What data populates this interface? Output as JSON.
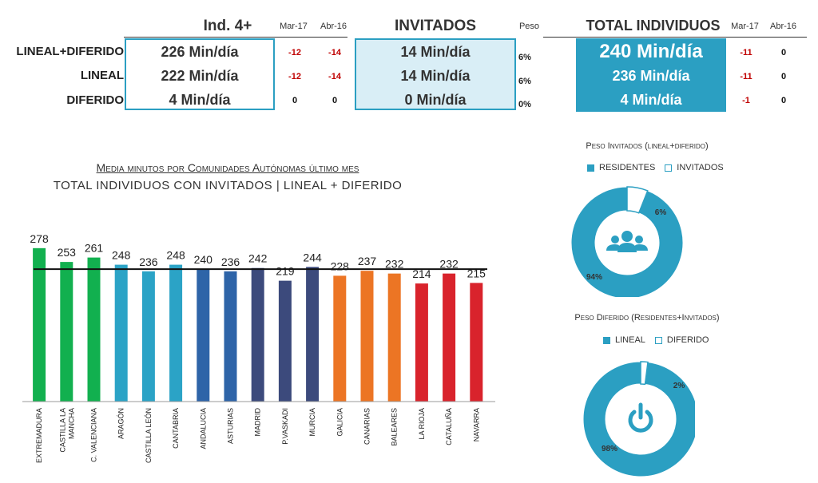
{
  "header": {
    "ind_title": "Ind. 4+",
    "invitados_title": "INVITADOS",
    "total_title": "TOTAL INDIVIDUOS",
    "mar17": "Mar-17",
    "abr16": "Abr-16",
    "peso": "Peso"
  },
  "rows": [
    {
      "label": "LINEAL+DIFERIDO",
      "ind": "226 Min/día",
      "ind_mar": "-12",
      "ind_abr": "-14",
      "inv": "14 Min/día",
      "peso": "6%",
      "tot": "240 Min/día",
      "tot_mar": "-11",
      "tot_abr": "0"
    },
    {
      "label": "LINEAL",
      "ind": "222 Min/día",
      "ind_mar": "-12",
      "ind_abr": "-14",
      "inv": "14 Min/día",
      "peso": "6%",
      "tot": "236 Min/día",
      "tot_mar": "-11",
      "tot_abr": "0"
    },
    {
      "label": "DIFERIDO",
      "ind": "4 Min/día",
      "ind_mar": "0",
      "ind_abr": "0",
      "inv": "0 Min/día",
      "peso": "0%",
      "tot": "4 Min/día",
      "tot_mar": "-1",
      "tot_abr": "0"
    }
  ],
  "colors": {
    "invitados_bg": "#d9eef6",
    "total_bg": "#2b9fc2",
    "negative": "#c00000",
    "pie_main": "#2b9fc2"
  },
  "chart_data": [
    {
      "type": "bar",
      "title": "Media minutos por Comunidades Autónomas último mes",
      "subtitle": "TOTAL INDIVIDUOS CON INVITADOS | LINEAL + DIFERIDO",
      "categories": [
        "EXTREMADURA",
        "CASTILLA LA MANCHA",
        "C. VALENCIANA",
        "ARAGÓN",
        "CASTILLA LEÓN",
        "CANTABRIA",
        "ANDALUCIA",
        "ASTURIAS",
        "MADRID",
        "P.VASKADI",
        "MURCIA",
        "GALICIA",
        "CANARIAS",
        "BALEARES",
        "LA RIOJA",
        "CATALUÑA",
        "NAVARRA"
      ],
      "values": [
        278,
        253,
        261,
        248,
        236,
        248,
        240,
        236,
        242,
        219,
        244,
        228,
        237,
        232,
        214,
        232,
        215
      ],
      "colors": [
        "#12b04f",
        "#12b04f",
        "#12b04f",
        "#2ba3c6",
        "#2ba3c6",
        "#2ba3c6",
        "#2e64a8",
        "#2e64a8",
        "#3c4a7c",
        "#3c4a7c",
        "#3c4a7c",
        "#ec7524",
        "#ec7524",
        "#ec7524",
        "#d9232c",
        "#d9232c",
        "#d9232c"
      ],
      "reference_line": 240,
      "ylim": [
        0,
        300
      ]
    },
    {
      "type": "pie",
      "title": "Peso Invitados (lineal+diferido)",
      "labels": [
        "RESIDENTES",
        "INVITADOS"
      ],
      "values": [
        94,
        6
      ],
      "data_labels": [
        "94%",
        "6%"
      ],
      "center_icon": "users-icon"
    },
    {
      "type": "pie",
      "title": "Peso Diferido  (Residentes+Invitados)",
      "labels": [
        "LINEAL",
        "DIFERIDO"
      ],
      "values": [
        98,
        2
      ],
      "data_labels": [
        "98%",
        "2%"
      ],
      "center_icon": "power-icon"
    }
  ]
}
